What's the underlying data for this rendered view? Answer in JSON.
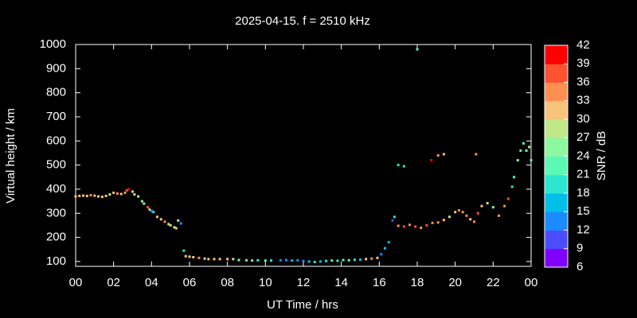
{
  "chart_data": {
    "type": "scatter",
    "title": "2025-04-15. f = 2510 kHz",
    "xlabel": "UT Time / hrs",
    "ylabel": "Virtual height / km",
    "colorbar_label": "SNR / dB",
    "background": "#000000",
    "xlim": [
      0,
      24
    ],
    "xticks": [
      {
        "value": 0,
        "label": "00"
      },
      {
        "value": 2,
        "label": "02"
      },
      {
        "value": 4,
        "label": "04"
      },
      {
        "value": 6,
        "label": "06"
      },
      {
        "value": 8,
        "label": "08"
      },
      10,
      12,
      14,
      16,
      18,
      20,
      22,
      {
        "value": 24,
        "label": "00"
      }
    ],
    "ylim": [
      80,
      1000
    ],
    "yticks": [
      100,
      200,
      300,
      400,
      500,
      600,
      700,
      800,
      900,
      1000
    ],
    "clim": [
      6,
      42
    ],
    "cticks": [
      6,
      9,
      12,
      15,
      18,
      21,
      24,
      27,
      30,
      33,
      36,
      39,
      42
    ],
    "colorscale": [
      "#8000ff",
      "#4c4cff",
      "#1a8cff",
      "#00c0ea",
      "#2ee6d0",
      "#5cf8b4",
      "#8cf8a0",
      "#c0e888",
      "#f8c37a",
      "#ff8f50",
      "#ff5230",
      "#ff0000"
    ],
    "x": [
      0,
      0.2,
      0.4,
      0.6,
      0.8,
      1.0,
      1.2,
      1.4,
      1.6,
      1.8,
      2.0,
      2.2,
      2.4,
      2.6,
      2.7,
      2.8,
      3.0,
      3.1,
      3.3,
      3.5,
      3.6,
      3.8,
      3.9,
      4.0,
      4.1,
      4.3,
      4.5,
      4.7,
      4.9,
      5.0,
      5.2,
      5.3,
      5.4,
      5.55,
      5.7,
      5.8,
      6.0,
      6.2,
      6.5,
      6.8,
      7.0,
      7.3,
      7.6,
      8.0,
      8.3,
      8.6,
      9.0,
      9.3,
      9.6,
      10.0,
      10.3,
      10.8,
      11.1,
      11.4,
      11.7,
      12.0,
      12.3,
      12.6,
      12.9,
      13.2,
      13.5,
      13.8,
      14.1,
      14.4,
      14.7,
      15.0,
      15.3,
      15.6,
      15.9,
      16.1,
      16.3,
      16.5,
      16.7,
      16.8,
      17.0,
      17.3,
      17.6,
      17.9,
      18.2,
      18.5,
      17.0,
      17.3,
      18.0,
      18.75,
      19.1,
      19.4,
      21.1,
      18.8,
      19.1,
      19.4,
      19.7,
      20.0,
      20.2,
      20.4,
      20.6,
      20.8,
      21.0,
      21.2,
      21.4,
      21.7,
      22.0,
      22.3,
      22.6,
      22.8,
      23.0,
      23.1,
      23.3,
      23.45,
      23.6,
      23.75,
      23.9,
      24.0
    ],
    "values": [
      370,
      372,
      373,
      372,
      375,
      373,
      370,
      368,
      372,
      378,
      385,
      382,
      380,
      385,
      395,
      400,
      390,
      378,
      370,
      350,
      340,
      325,
      315,
      310,
      305,
      285,
      275,
      265,
      255,
      250,
      242,
      238,
      270,
      258,
      145,
      122,
      120,
      118,
      115,
      112,
      110,
      110,
      110,
      110,
      110,
      106,
      105,
      104,
      105,
      104,
      104,
      105,
      106,
      104,
      105,
      102,
      100,
      98,
      100,
      102,
      104,
      103,
      106,
      105,
      107,
      108,
      110,
      112,
      115,
      130,
      155,
      180,
      270,
      285,
      248,
      245,
      252,
      245,
      240,
      250,
      500,
      495,
      980,
      520,
      540,
      545,
      545,
      260,
      262,
      272,
      285,
      305,
      312,
      305,
      290,
      275,
      265,
      300,
      330,
      342,
      325,
      290,
      330,
      360,
      410,
      450,
      520,
      560,
      590,
      560,
      575,
      520
    ],
    "snr": [
      30,
      30,
      31,
      30,
      33,
      30,
      31,
      30,
      32,
      28,
      30,
      33,
      31,
      34,
      36,
      39,
      32,
      27,
      28,
      26,
      25,
      37,
      28,
      12,
      20,
      31,
      30,
      33,
      28,
      31,
      27,
      30,
      25,
      12,
      20,
      32,
      30,
      31,
      33,
      30,
      31,
      32,
      30,
      31,
      29,
      24,
      22,
      25,
      20,
      22,
      19,
      14,
      13,
      15,
      14,
      12,
      17,
      18,
      16,
      20,
      22,
      19,
      23,
      21,
      20,
      15,
      31,
      33,
      32,
      14,
      17,
      16,
      10,
      18,
      34,
      38,
      33,
      36,
      35,
      37,
      18,
      20,
      22,
      41,
      34,
      30,
      33,
      35,
      33,
      31,
      28,
      32,
      34,
      33,
      34,
      32,
      35,
      38,
      30,
      29,
      26,
      33,
      34,
      38,
      20,
      22,
      25,
      22,
      21,
      24,
      26,
      23
    ]
  }
}
